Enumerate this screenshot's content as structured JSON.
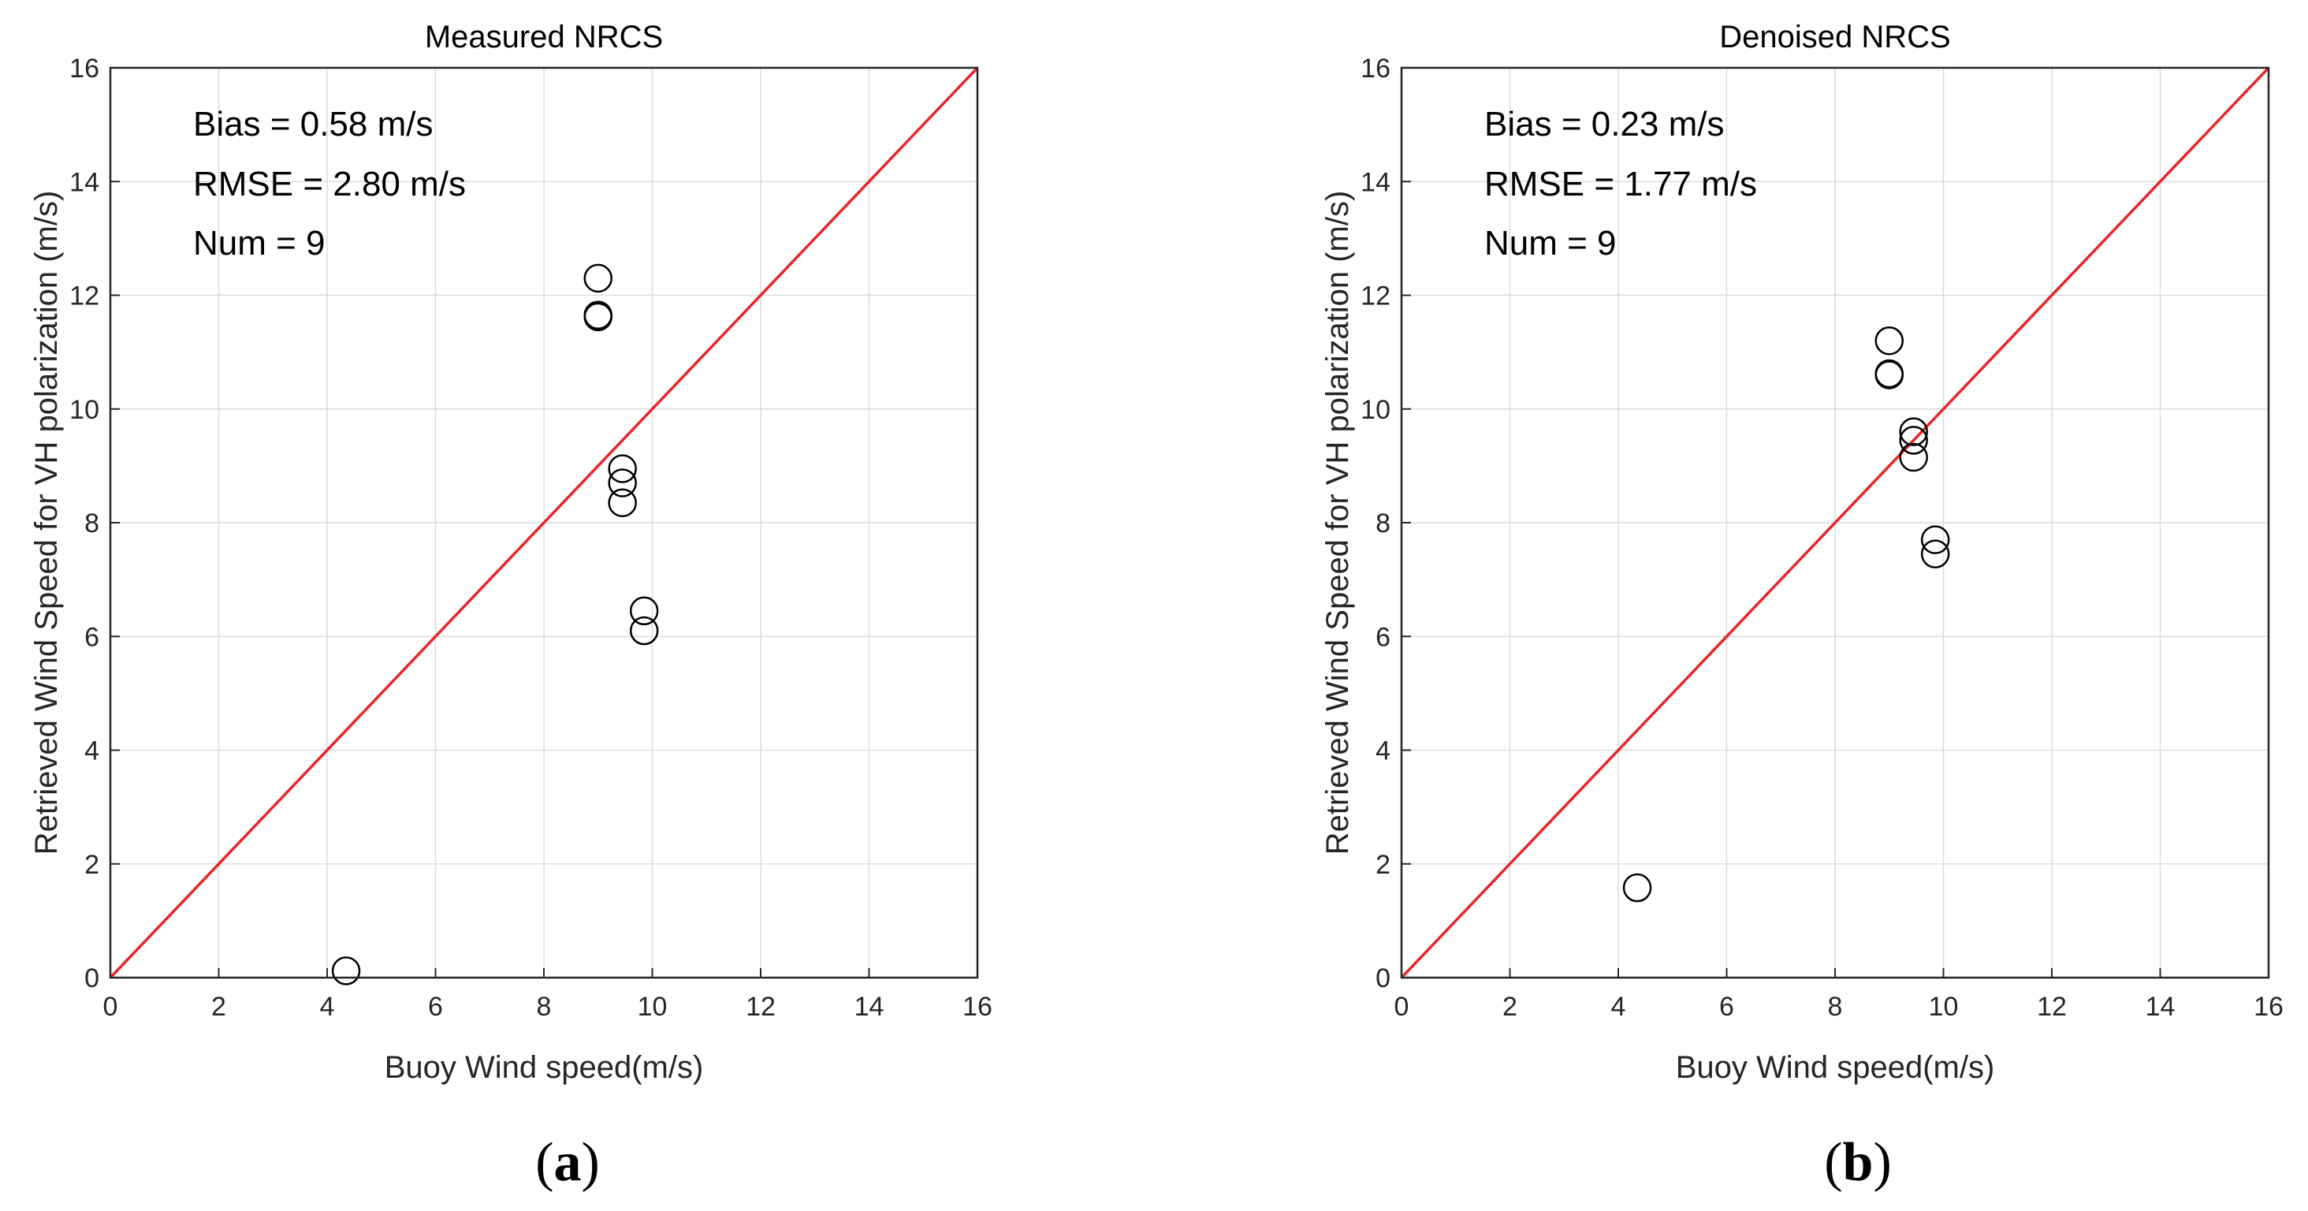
{
  "chart_data": [
    {
      "type": "scatter",
      "panel_label": "a",
      "title": "Measured NRCS",
      "xlabel": "Buoy Wind speed(m/s)",
      "ylabel": "Retrieved Wind Speed for VH polarization (m/s)",
      "xlim": [
        0,
        16
      ],
      "ylim": [
        0,
        16
      ],
      "xticks": [
        "0",
        "2",
        "4",
        "6",
        "8",
        "10",
        "12",
        "14",
        "16"
      ],
      "yticks": [
        "0",
        "2",
        "4",
        "6",
        "8",
        "10",
        "12",
        "14",
        "16"
      ],
      "grid": true,
      "annotations": [
        "Bias = 0.58 m/s",
        "RMSE = 2.80 m/s",
        "Num = 9"
      ],
      "reference_line": {
        "from": [
          0,
          0
        ],
        "to": [
          16,
          16
        ],
        "color": "#e8262a"
      },
      "points": [
        {
          "x": 4.35,
          "y": 0.12
        },
        {
          "x": 9.0,
          "y": 12.3
        },
        {
          "x": 9.0,
          "y": 11.65
        },
        {
          "x": 9.0,
          "y": 11.62
        },
        {
          "x": 9.45,
          "y": 8.95
        },
        {
          "x": 9.45,
          "y": 8.7
        },
        {
          "x": 9.45,
          "y": 8.35
        },
        {
          "x": 9.85,
          "y": 6.45
        },
        {
          "x": 9.85,
          "y": 6.1
        }
      ]
    },
    {
      "type": "scatter",
      "panel_label": "b",
      "title": "Denoised NRCS",
      "xlabel": "Buoy Wind speed(m/s)",
      "ylabel": "Retrieved Wind Speed for VH polarization (m/s)",
      "xlim": [
        0,
        16
      ],
      "ylim": [
        0,
        16
      ],
      "xticks": [
        "0",
        "2",
        "4",
        "6",
        "8",
        "10",
        "12",
        "14",
        "16"
      ],
      "yticks": [
        "0",
        "2",
        "4",
        "6",
        "8",
        "10",
        "12",
        "14",
        "16"
      ],
      "grid": true,
      "annotations": [
        "Bias = 0.23 m/s",
        "RMSE = 1.77 m/s",
        "Num = 9"
      ],
      "reference_line": {
        "from": [
          0,
          0
        ],
        "to": [
          16,
          16
        ],
        "color": "#e8262a"
      },
      "points": [
        {
          "x": 4.35,
          "y": 1.58
        },
        {
          "x": 9.0,
          "y": 11.2
        },
        {
          "x": 9.0,
          "y": 10.62
        },
        {
          "x": 9.0,
          "y": 10.6
        },
        {
          "x": 9.45,
          "y": 9.6
        },
        {
          "x": 9.45,
          "y": 9.45
        },
        {
          "x": 9.45,
          "y": 9.15
        },
        {
          "x": 9.85,
          "y": 7.7
        },
        {
          "x": 9.85,
          "y": 7.45
        }
      ]
    }
  ]
}
